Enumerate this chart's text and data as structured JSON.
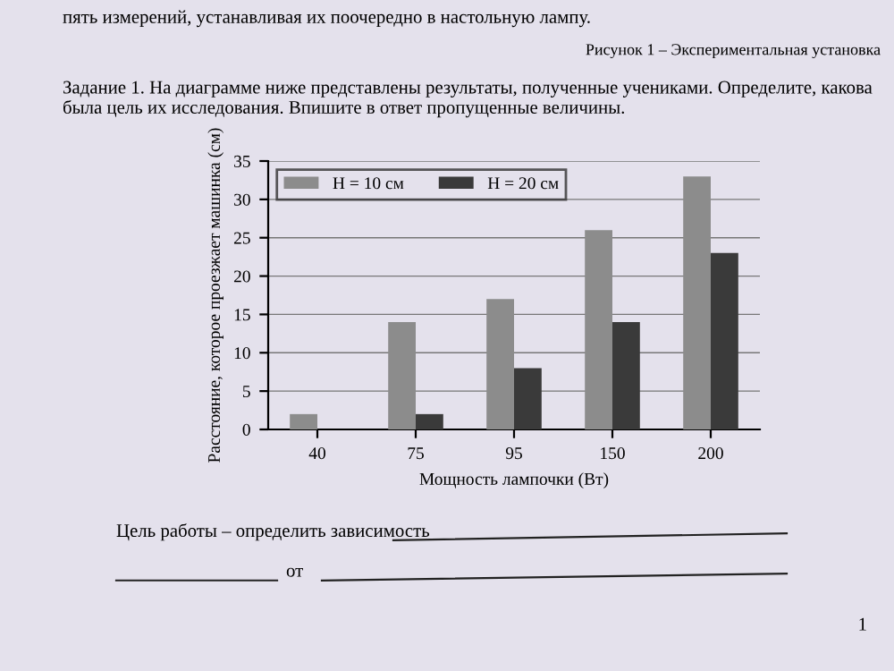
{
  "chart_data": {
    "type": "bar",
    "title": "Задание 1. На диаграмме ниже представлены результаты, полученные учениками. Определите, какова была цель их исследования. Впишите в ответ пропущенные величины.",
    "xlabel": "Мощность лампочки (Вт)",
    "ylabel": "Расстояние, которое проезжает машинка (см)",
    "categories": [
      "40",
      "75",
      "95",
      "150",
      "200"
    ],
    "series": [
      {
        "name": "H = 10 см",
        "color": "#8c8c8c",
        "values": [
          2,
          14,
          17,
          26,
          33
        ]
      },
      {
        "name": "H = 20 см",
        "color": "#3a3a3a",
        "values": [
          null,
          2,
          8,
          14,
          23
        ]
      }
    ],
    "ylim": [
      0,
      35
    ],
    "yticks": [
      0,
      5,
      10,
      15,
      20,
      25,
      30,
      35
    ],
    "grid": "y",
    "legend": "top left",
    "annotations": [
      "пять измерений, устанавливая их поочередно в настольную лампу.",
      "Рисунок 1 – Экспериментальная установка",
      "Цель работы – определить зависимость",
      "от",
      "1"
    ]
  }
}
